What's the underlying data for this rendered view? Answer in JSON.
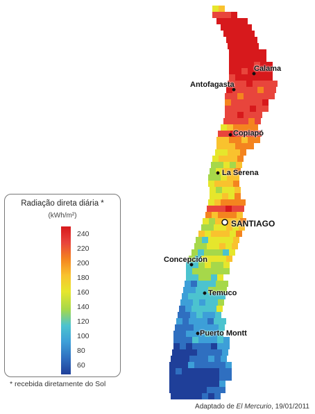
{
  "legend": {
    "title": "Radiação direta diária *",
    "unit": "(kWh/m²)",
    "ticks": [
      "240",
      "220",
      "200",
      "180",
      "160",
      "140",
      "120",
      "100",
      "80",
      "60"
    ],
    "colors": [
      "#d7191c",
      "#e8453c",
      "#f4841f",
      "#f9c22e",
      "#e6e62c",
      "#a6d84a",
      "#4cc3cf",
      "#3d9fd8",
      "#2f6fc0",
      "#1f3f99"
    ]
  },
  "footnote": "* recebida diretamente do Sol",
  "credit": {
    "prefix": "Adaptado de ",
    "source": "El Mercurio",
    "suffix": ", 19/01/2011"
  },
  "cities": [
    {
      "name": "Calama"
    },
    {
      "name": "Antofagasta"
    },
    {
      "name": "Copiapó"
    },
    {
      "name": "La Serena"
    },
    {
      "name": "SANTIAGO"
    },
    {
      "name": "Concepción"
    },
    {
      "name": "Temuco"
    },
    {
      "name": "Puerto Montt"
    }
  ]
}
